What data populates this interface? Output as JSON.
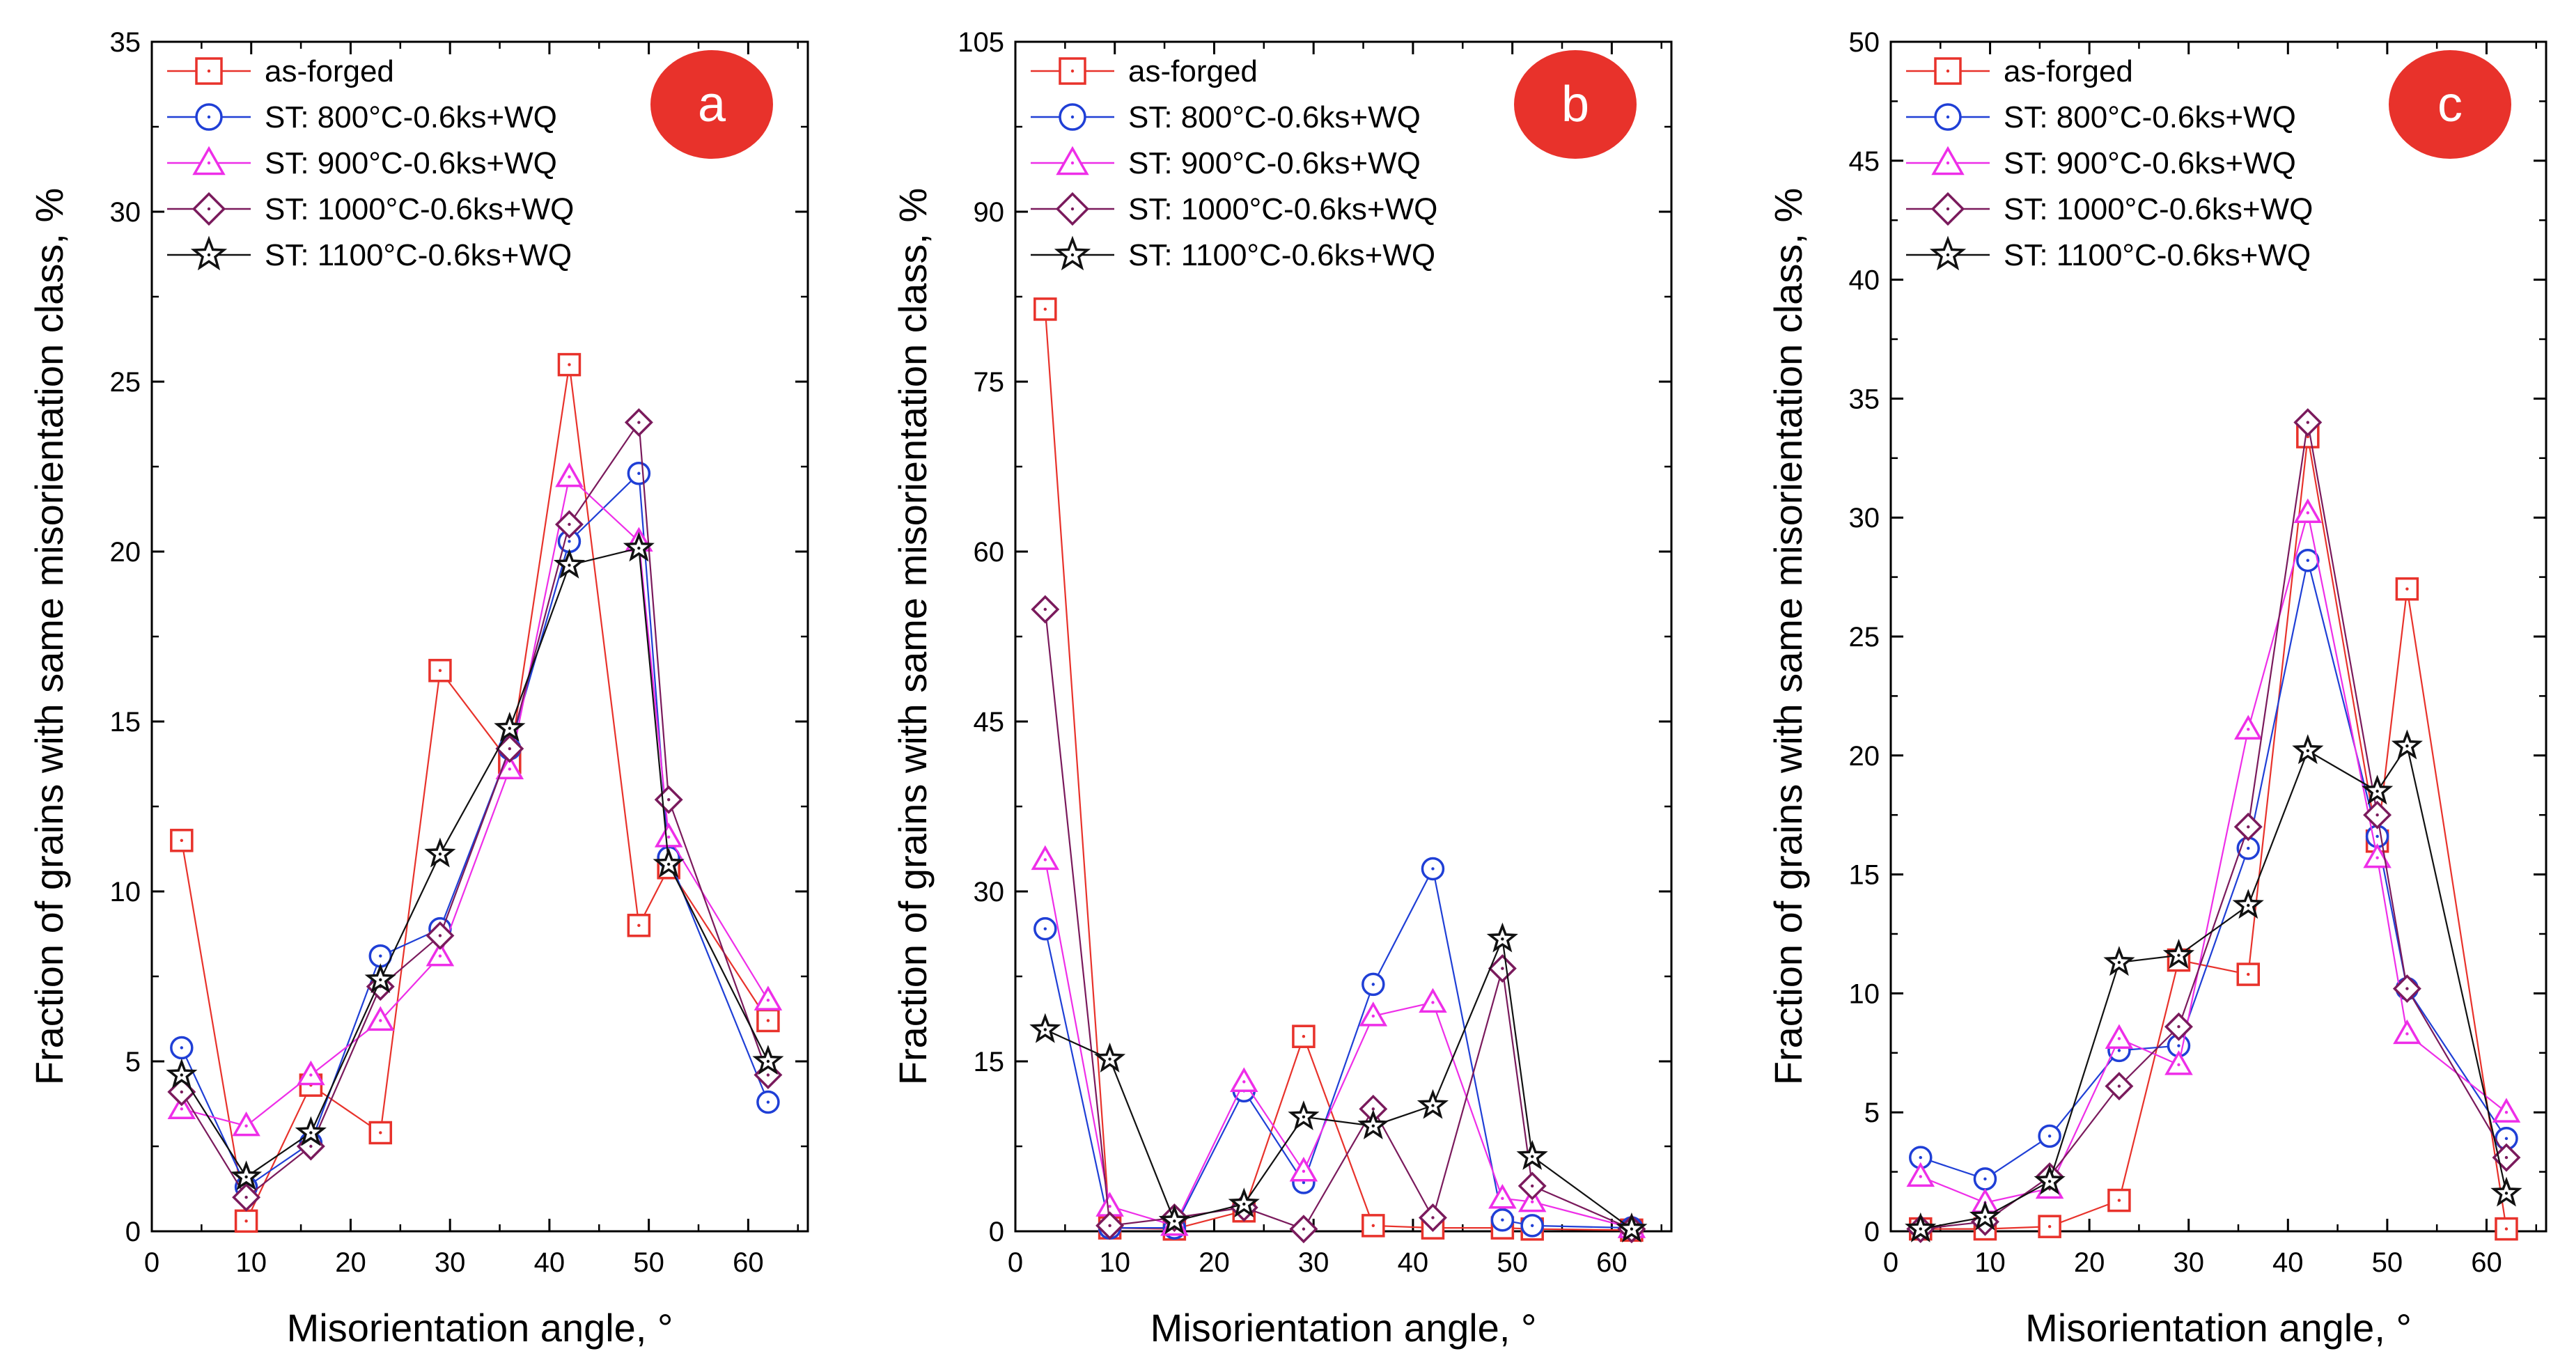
{
  "chart_data": [
    {
      "type": "line",
      "panel_label": "a",
      "xlabel": "Misorientation angle, °",
      "ylabel": "Fraction of grains with same misorientation class, %",
      "xlim": [
        0,
        66
      ],
      "ylim": [
        0,
        35
      ],
      "xticks": [
        0,
        10,
        20,
        30,
        40,
        50,
        60
      ],
      "yticks": [
        0,
        5,
        10,
        15,
        20,
        25,
        30,
        35
      ],
      "legend_position": "top-left",
      "series": [
        {
          "name": "as-forged",
          "marker": "square",
          "color": "#e8322b",
          "x": [
            3,
            9.5,
            16,
            23,
            29,
            36,
            42,
            49,
            52,
            62
          ],
          "y": [
            11.5,
            0.3,
            4.3,
            2.9,
            16.5,
            13.8,
            25.5,
            9.0,
            10.7,
            6.2
          ]
        },
        {
          "name": "ST: 800°C-0.6ks+WQ",
          "marker": "circle",
          "color": "#1f3fd6",
          "x": [
            3,
            9.5,
            16,
            23,
            29,
            36,
            42,
            49,
            52,
            62
          ],
          "y": [
            5.4,
            1.3,
            2.6,
            8.1,
            8.9,
            14.2,
            20.3,
            22.3,
            11.0,
            3.8
          ]
        },
        {
          "name": "ST: 900°C-0.6ks+WQ",
          "marker": "triangle",
          "color": "#ee2ee8",
          "x": [
            3,
            9.5,
            16,
            23,
            29,
            36,
            42,
            49,
            52,
            62
          ],
          "y": [
            3.6,
            3.1,
            4.6,
            6.2,
            8.1,
            13.6,
            22.2,
            20.3,
            11.6,
            6.8
          ]
        },
        {
          "name": "ST: 1000°C-0.6ks+WQ",
          "marker": "diamond",
          "color": "#7a1a5c",
          "x": [
            3,
            9.5,
            16,
            23,
            29,
            36,
            42,
            49,
            52,
            62
          ],
          "y": [
            4.1,
            1.0,
            2.5,
            7.2,
            8.7,
            14.2,
            20.8,
            23.8,
            12.7,
            4.6
          ]
        },
        {
          "name": "ST: 1100°C-0.6ks+WQ",
          "marker": "star",
          "color": "#111111",
          "x": [
            3,
            9.5,
            16,
            23,
            29,
            36,
            42,
            49,
            52,
            62
          ],
          "y": [
            4.6,
            1.6,
            2.9,
            7.4,
            11.1,
            14.8,
            19.6,
            20.1,
            10.8,
            5.0
          ]
        }
      ]
    },
    {
      "type": "line",
      "panel_label": "b",
      "xlabel": "Misorientation angle, °",
      "ylabel": "Fraction of grains with same misorientation class, %",
      "xlim": [
        0,
        66
      ],
      "ylim": [
        0,
        105
      ],
      "xticks": [
        0,
        10,
        20,
        30,
        40,
        50,
        60
      ],
      "yticks": [
        0,
        15,
        30,
        45,
        60,
        75,
        90,
        105
      ],
      "legend_position": "top-left",
      "series": [
        {
          "name": "as-forged",
          "marker": "square",
          "color": "#e8322b",
          "x": [
            3,
            9.5,
            16,
            23,
            29,
            36,
            42,
            49,
            52,
            62
          ],
          "y": [
            81.4,
            0.3,
            0.2,
            1.8,
            17.2,
            0.5,
            0.3,
            0.3,
            0.2,
            0.1
          ]
        },
        {
          "name": "ST: 800°C-0.6ks+WQ",
          "marker": "circle",
          "color": "#1f3fd6",
          "x": [
            3,
            9.5,
            16,
            23,
            29,
            36,
            42,
            49,
            52,
            62
          ],
          "y": [
            26.7,
            0.3,
            0.3,
            12.4,
            4.3,
            21.8,
            32.0,
            1.0,
            0.5,
            0.3
          ]
        },
        {
          "name": "ST: 900°C-0.6ks+WQ",
          "marker": "triangle",
          "color": "#ee2ee8",
          "x": [
            3,
            9.5,
            16,
            23,
            29,
            36,
            42,
            49,
            52,
            62
          ],
          "y": [
            32.8,
            2.2,
            0.5,
            13.2,
            5.3,
            19.0,
            20.2,
            2.9,
            2.6,
            0.3
          ]
        },
        {
          "name": "ST: 1000°C-0.6ks+WQ",
          "marker": "diamond",
          "color": "#7a1a5c",
          "x": [
            3,
            9.5,
            16,
            23,
            29,
            36,
            42,
            49,
            52,
            62
          ],
          "y": [
            54.9,
            0.5,
            1.2,
            2.1,
            0.2,
            10.8,
            1.2,
            23.2,
            4.0,
            0.2
          ]
        },
        {
          "name": "ST: 1100°C-0.6ks+WQ",
          "marker": "star",
          "color": "#111111",
          "x": [
            3,
            9.5,
            16,
            23,
            29,
            36,
            42,
            49,
            52,
            62
          ],
          "y": [
            17.8,
            15.2,
            0.9,
            2.4,
            10.1,
            9.3,
            11.1,
            25.8,
            6.6,
            0.2
          ]
        }
      ]
    },
    {
      "type": "line",
      "panel_label": "c",
      "xlabel": "Misorientation angle, °",
      "ylabel": "Fraction of grains with same misorientation class, %",
      "xlim": [
        0,
        66
      ],
      "ylim": [
        0,
        50
      ],
      "xticks": [
        0,
        10,
        20,
        30,
        40,
        50,
        60
      ],
      "yticks": [
        0,
        5,
        10,
        15,
        20,
        25,
        30,
        35,
        40,
        45,
        50
      ],
      "legend_position": "top-left",
      "series": [
        {
          "name": "as-forged",
          "marker": "square",
          "color": "#e8322b",
          "x": [
            3,
            9.5,
            16,
            23,
            29,
            36,
            42,
            49,
            52,
            62
          ],
          "y": [
            0.1,
            0.1,
            0.2,
            1.3,
            11.4,
            10.8,
            33.4,
            16.4,
            27.0,
            0.1
          ]
        },
        {
          "name": "ST: 800°C-0.6ks+WQ",
          "marker": "circle",
          "color": "#1f3fd6",
          "x": [
            3,
            9.5,
            16,
            23,
            29,
            36,
            42,
            49,
            52,
            62
          ],
          "y": [
            3.1,
            2.2,
            4.0,
            7.6,
            7.8,
            16.1,
            28.2,
            16.6,
            10.2,
            3.9
          ]
        },
        {
          "name": "ST: 900°C-0.6ks+WQ",
          "marker": "triangle",
          "color": "#ee2ee8",
          "x": [
            3,
            9.5,
            16,
            23,
            29,
            36,
            42,
            49,
            52,
            62
          ],
          "y": [
            2.3,
            1.2,
            1.8,
            8.1,
            7.0,
            21.1,
            30.2,
            15.7,
            8.3,
            5.0
          ]
        },
        {
          "name": "ST: 1000°C-0.6ks+WQ",
          "marker": "diamond",
          "color": "#7a1a5c",
          "x": [
            3,
            9.5,
            16,
            23,
            29,
            36,
            42,
            49,
            52,
            62
          ],
          "y": [
            0.1,
            0.4,
            2.3,
            6.1,
            8.6,
            17.0,
            34.0,
            17.5,
            10.2,
            3.1
          ]
        },
        {
          "name": "ST: 1100°C-0.6ks+WQ",
          "marker": "star",
          "color": "#111111",
          "x": [
            3,
            9.5,
            16,
            23,
            29,
            36,
            42,
            49,
            52,
            62
          ],
          "y": [
            0.1,
            0.6,
            2.1,
            11.3,
            11.6,
            13.7,
            20.2,
            18.5,
            20.4,
            1.6
          ]
        }
      ]
    }
  ],
  "colors": {
    "badge_fill": "#e8322b",
    "axis": "#000000"
  }
}
